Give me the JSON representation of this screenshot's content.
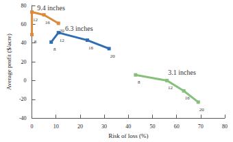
{
  "chart_data": {
    "type": "line",
    "x_label": "Risk of loss (%)",
    "y_label": "Average profit ($/acre)",
    "xlim": [
      0,
      80
    ],
    "xticks": [
      0,
      10,
      20,
      30,
      40,
      50,
      60,
      70,
      80
    ],
    "ylim": [
      -40,
      80
    ],
    "yticks": [
      -40,
      -20,
      0,
      20,
      40,
      60,
      80
    ],
    "grid": false,
    "marker": "square",
    "line_style": "solid",
    "series": [
      {
        "name": "9.4 inches",
        "color": "#dd8a3a",
        "x": [
          0,
          0,
          5,
          11
        ],
        "values": [
          49,
          73,
          70,
          61
        ],
        "point_labels": [
          8,
          12,
          16,
          20
        ]
      },
      {
        "name": "6.3 inches",
        "color": "#2e6db4",
        "x": [
          8,
          11,
          23,
          32
        ],
        "values": [
          41,
          51,
          43,
          34
        ],
        "point_labels": [
          8,
          12,
          16,
          20
        ]
      },
      {
        "name": "3.1 inches",
        "color": "#86c07a",
        "x": [
          43,
          56,
          63,
          69
        ],
        "values": [
          6,
          0,
          -11,
          -23
        ],
        "point_labels": [
          8,
          12,
          16,
          20
        ]
      }
    ]
  }
}
